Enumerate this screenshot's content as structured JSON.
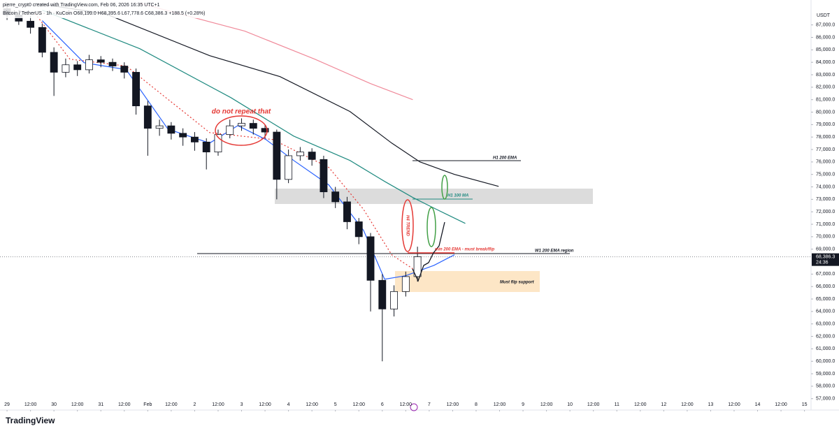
{
  "chart_data": {
    "type": "candlestick",
    "header": "pierre_crypt0 created with TradingView.com, Feb 06, 2026 16:35 UTC+1",
    "symbol_line": "Bitcoin / TetherUS · 1h · KuCoin  O68,199.0 H68,395.6 L67,778.6 C68,386.3 +188.5 (+0.28%)",
    "currency": "USDT",
    "brand": "TradingView",
    "up_color": "#ffffff",
    "down_color": "#131722",
    "x": [
      0,
      0.25,
      0.5,
      0.75,
      1,
      1.25,
      1.5,
      1.75,
      2,
      2.25,
      2.5,
      2.75,
      3,
      3.25,
      3.5,
      3.75,
      4,
      4.25,
      4.5,
      4.75,
      5,
      5.25,
      5.5,
      5.75,
      6,
      6.25,
      6.5,
      6.75,
      7,
      7.25,
      7.5,
      7.75,
      8,
      8.25,
      8.5,
      8.75
    ],
    "open": [
      88300,
      87800,
      87300,
      86800,
      84800,
      83200,
      83800,
      83400,
      84200,
      84000,
      83700,
      83200,
      80500,
      78700,
      78900,
      78300,
      78000,
      77600,
      76800,
      78200,
      78900,
      79100,
      78700,
      78400,
      74600,
      76500,
      76800,
      76200,
      73600,
      72800,
      71200,
      70000,
      66500,
      64200,
      65600,
      66800
    ],
    "high": [
      88700,
      88200,
      87700,
      87100,
      85200,
      84300,
      84100,
      84600,
      84500,
      84300,
      84000,
      83500,
      80900,
      79400,
      79200,
      78700,
      78400,
      77900,
      78600,
      79400,
      79500,
      79400,
      79000,
      78600,
      77000,
      77200,
      77100,
      76500,
      74000,
      73200,
      71500,
      70300,
      67000,
      66100,
      67200,
      69200
    ],
    "low": [
      87400,
      87000,
      86300,
      84400,
      81300,
      82800,
      82900,
      83100,
      83600,
      83300,
      82700,
      79800,
      76500,
      78100,
      77800,
      77300,
      76900,
      75400,
      76500,
      77900,
      78500,
      78200,
      77900,
      73000,
      74300,
      76100,
      75700,
      73100,
      72300,
      70600,
      69400,
      64000,
      60000,
      63600,
      65200,
      66400
    ],
    "close": [
      87800,
      87300,
      86800,
      84800,
      83200,
      83800,
      83400,
      84200,
      84000,
      83700,
      83200,
      80500,
      78700,
      78900,
      78300,
      78000,
      77600,
      76800,
      78200,
      78900,
      79100,
      78700,
      78400,
      74600,
      76500,
      76800,
      76200,
      73600,
      72800,
      71200,
      70000,
      66500,
      64200,
      65600,
      66800,
      68400
    ],
    "overlays": [
      {
        "color": "#131722",
        "x": [
          0.6,
          2.09,
          4.32,
          5.82,
          7.31,
          8.2,
          8.8,
          9.54,
          10.48
        ],
        "values": [
          88740,
          87900,
          84530,
          82850,
          80050,
          77520,
          76010,
          75000,
          74040
        ]
      },
      {
        "color": "#f08a9a",
        "x": [
          2.83,
          5.07,
          6.56,
          7.75,
          8.65
        ],
        "values": [
          88740,
          86500,
          84250,
          82290,
          81000
        ]
      },
      {
        "color": "#1f8a80",
        "x": [
          0.75,
          2.83,
          4.77,
          6.11,
          7.31,
          8.05,
          8.65,
          9.1,
          9.77
        ],
        "values": [
          88180,
          85090,
          81170,
          78080,
          76120,
          74440,
          73150,
          72300,
          71070
        ]
      },
      {
        "color": "#e53935",
        "dotted": true,
        "x": [
          0.6,
          1.34,
          2.54,
          4.32,
          5.67,
          6.11,
          6.86,
          7.6,
          8.2,
          8.65
        ],
        "values": [
          87900,
          84250,
          83700,
          78360,
          77800,
          76960,
          75560,
          72190,
          68550,
          67430
        ]
      },
      {
        "color": "#2962ff",
        "x": [
          0.75,
          1.64,
          2.54,
          3.43,
          4.32,
          4.92,
          5.52,
          6.11,
          6.86,
          7.6,
          8.05,
          8.5,
          9.1,
          9.54
        ],
        "values": [
          87340,
          83970,
          83410,
          78640,
          77520,
          78920,
          77800,
          76120,
          74160,
          70510,
          66590,
          66870,
          67700,
          68550
        ]
      }
    ],
    "xlim": [
      -0.15,
      17.14
    ],
    "ylim": [
      56200,
      89000
    ],
    "xticks": [
      {
        "value": 0,
        "label": "29"
      },
      {
        "value": 0.5,
        "label": "12:00"
      },
      {
        "value": 1,
        "label": "30"
      },
      {
        "value": 1.5,
        "label": "12:00"
      },
      {
        "value": 2,
        "label": "31"
      },
      {
        "value": 2.5,
        "label": "12:00"
      },
      {
        "value": 3,
        "label": "Feb"
      },
      {
        "value": 3.5,
        "label": "12:00"
      },
      {
        "value": 4,
        "label": "2"
      },
      {
        "value": 4.5,
        "label": "12:00"
      },
      {
        "value": 5,
        "label": "3"
      },
      {
        "value": 5.5,
        "label": "12:00"
      },
      {
        "value": 6,
        "label": "4"
      },
      {
        "value": 6.5,
        "label": "12:00"
      },
      {
        "value": 7,
        "label": "5"
      },
      {
        "value": 7.5,
        "label": "12:00"
      },
      {
        "value": 8,
        "label": "6"
      },
      {
        "value": 8.5,
        "label": "12:00"
      },
      {
        "value": 9,
        "label": "7"
      },
      {
        "value": 9.5,
        "label": "12:00"
      },
      {
        "value": 10,
        "label": "8"
      },
      {
        "value": 10.5,
        "label": "12:00"
      },
      {
        "value": 11,
        "label": "9"
      },
      {
        "value": 11.5,
        "label": "12:00"
      },
      {
        "value": 12,
        "label": "10"
      },
      {
        "value": 12.5,
        "label": "12:00"
      },
      {
        "value": 13,
        "label": "11"
      },
      {
        "value": 13.5,
        "label": "12:00"
      },
      {
        "value": 14,
        "label": "12"
      },
      {
        "value": 14.5,
        "label": "12:00"
      },
      {
        "value": 15,
        "label": "13"
      },
      {
        "value": 15.5,
        "label": "12:00"
      },
      {
        "value": 16,
        "label": "14"
      },
      {
        "value": 16.5,
        "label": "12:00"
      },
      {
        "value": 17,
        "label": "15"
      }
    ],
    "yticks": [
      {
        "value": 57000,
        "label": "57,000.0"
      },
      {
        "value": 58000,
        "label": "58,000.0"
      },
      {
        "value": 59000,
        "label": "59,000.0"
      },
      {
        "value": 60000,
        "label": "60,000.0"
      },
      {
        "value": 61000,
        "label": "61,000.0"
      },
      {
        "value": 62000,
        "label": "62,000.0"
      },
      {
        "value": 63000,
        "label": "63,000.0"
      },
      {
        "value": 64000,
        "label": "64,000.0"
      },
      {
        "value": 65000,
        "label": "65,000.0"
      },
      {
        "value": 66000,
        "label": "66,000.0"
      },
      {
        "value": 67000,
        "label": "67,000.0"
      },
      {
        "value": 69000,
        "label": "69,000.0"
      },
      {
        "value": 70000,
        "label": "70,000.0"
      },
      {
        "value": 71000,
        "label": "71,000.0"
      },
      {
        "value": 72000,
        "label": "72,000.0"
      },
      {
        "value": 73000,
        "label": "73,000.0"
      },
      {
        "value": 74000,
        "label": "74,000.0"
      },
      {
        "value": 75000,
        "label": "75,000.0"
      },
      {
        "value": 76000,
        "label": "76,000.0"
      },
      {
        "value": 77000,
        "label": "77,000.0"
      },
      {
        "value": 78000,
        "label": "78,000.0"
      },
      {
        "value": 79000,
        "label": "79,000.0"
      },
      {
        "value": 80000,
        "label": "80,000.0"
      },
      {
        "value": 81000,
        "label": "81,000.0"
      },
      {
        "value": 82000,
        "label": "82,000.0"
      },
      {
        "value": 83000,
        "label": "83,000.0"
      },
      {
        "value": 84000,
        "label": "84,000.0"
      },
      {
        "value": 85000,
        "label": "85,000.0"
      },
      {
        "value": 86000,
        "label": "86,000.0"
      },
      {
        "value": 87000,
        "label": "87,000.0"
      }
    ],
    "last_price": {
      "value": 68386.3,
      "label": "68,386.3"
    },
    "countdown": "24:36",
    "annotations": [
      "H1 200 EMA",
      "H1 100 MA",
      "H4 TREND",
      "min 200 EMA - must break/flip",
      "W1 200 EMA region",
      "Must flip support",
      "do not repeat that"
    ]
  }
}
